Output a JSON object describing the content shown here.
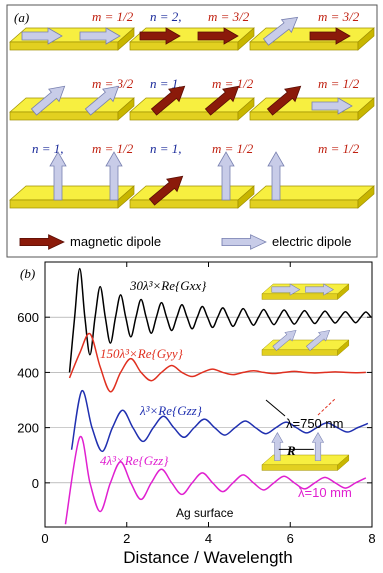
{
  "panel_a": {
    "label": "(a)",
    "rows": [
      [
        {
          "m": "m = 1/2"
        },
        {
          "n": "n = 2,",
          "m": "m = 3/2"
        },
        {
          "m": "m = 3/2"
        }
      ],
      [
        {
          "m": "m = 3/2"
        },
        {
          "n": "n = 1,",
          "m": "m = 1/2"
        },
        {
          "m": "m = 1/2"
        }
      ],
      [
        {
          "n": "n = 1,",
          "m": "m = 1/2"
        },
        {
          "n": "n = 1,",
          "m": "m = 1/2"
        },
        {
          "m": "m = 1/2"
        }
      ]
    ],
    "legend": [
      "magnetic dipole",
      "electric dipole"
    ]
  },
  "chart_data": {
    "type": "line",
    "label": "(b)",
    "x_label": "Distance / Wavelength",
    "xlim": [
      0,
      8
    ],
    "xticks": [
      0,
      2,
      4,
      6,
      8
    ],
    "ylim": [
      -160,
      800
    ],
    "yticks": [
      0,
      200,
      400,
      600
    ],
    "grid": true,
    "series": [
      {
        "name": "30λ³×Re{Gxx}",
        "color": "#000000",
        "x": [
          0.6,
          0.725,
          0.85,
          0.975,
          1.1,
          1.225,
          1.35,
          1.475,
          1.6,
          1.725,
          1.85,
          1.975,
          2.1,
          2.225,
          2.35,
          2.475,
          2.6,
          2.725,
          2.85,
          2.975,
          3.1,
          3.225,
          3.35,
          3.475,
          3.6,
          3.725,
          3.85,
          3.975,
          4.1,
          4.225,
          4.35,
          4.475,
          4.6,
          4.725,
          4.85,
          4.975,
          5.1,
          5.225,
          5.35,
          5.475,
          5.6,
          5.725,
          5.85,
          5.975,
          6.1,
          6.225,
          6.35,
          6.475,
          6.6,
          6.725,
          6.85,
          6.975,
          7.1,
          7.225,
          7.35,
          7.475,
          7.6,
          7.725,
          7.85,
          7.975
        ],
        "values": [
          400,
          600,
          776,
          600,
          464,
          600,
          711,
          600,
          506,
          600,
          681,
          600,
          529,
          600,
          664,
          600,
          542,
          600,
          653,
          600,
          552,
          600,
          645,
          600,
          558,
          600,
          639,
          600,
          563,
          600,
          634,
          600,
          567,
          600,
          631,
          600,
          571,
          600,
          628,
          600,
          573,
          600,
          626,
          600,
          575,
          600,
          624,
          600,
          577,
          600,
          622,
          600,
          579,
          600,
          620,
          600,
          580,
          600,
          619,
          600
        ]
      },
      {
        "name": "150λ³×Re{Gyy}",
        "color": "#e03020",
        "x": [
          0.6,
          0.85,
          1.1,
          1.35,
          1.6,
          1.85,
          2.1,
          2.35,
          2.6,
          2.85,
          3.1,
          3.35,
          3.6,
          3.85,
          4.1,
          4.35,
          4.6,
          4.85,
          5.1,
          5.35,
          5.6,
          5.85,
          6.1,
          6.35,
          6.6,
          6.85,
          7.1,
          7.35,
          7.6,
          7.85
        ],
        "values": [
          380,
          470,
          540,
          420,
          330,
          400,
          450,
          400,
          370,
          400,
          425,
          400,
          385,
          400,
          412,
          400,
          392,
          400,
          406,
          400,
          396,
          400,
          404,
          400,
          398,
          400,
          402,
          400,
          399,
          400
        ]
      },
      {
        "name": "λ³×Re{Gzz}",
        "color": "#2030b0",
        "x": [
          0.65,
          0.9,
          1.15,
          1.4,
          1.65,
          1.9,
          2.15,
          2.4,
          2.65,
          2.9,
          3.15,
          3.4,
          3.65,
          3.9,
          4.15,
          4.4,
          4.65,
          4.9,
          5.15,
          5.4,
          5.65,
          5.9,
          6.15,
          6.4,
          6.65,
          6.9,
          7.15,
          7.4,
          7.65,
          7.9
        ],
        "values": [
          120,
          333,
          200,
          114,
          200,
          263,
          200,
          150,
          200,
          241,
          200,
          165,
          200,
          231,
          200,
          173,
          200,
          224,
          200,
          178,
          200,
          220,
          200,
          181,
          200,
          217,
          200,
          184,
          200,
          215
        ]
      },
      {
        "name": "4λ³×Re{Gzz}",
        "color": "#e020d0",
        "x": [
          0.5,
          0.85,
          1.1,
          1.35,
          1.6,
          1.85,
          2.1,
          2.35,
          2.6,
          2.85,
          3.1,
          3.35,
          3.6,
          3.85,
          4.1,
          4.35,
          4.6,
          4.85,
          5.1,
          5.35,
          5.6,
          5.85,
          6.1,
          6.35,
          6.6,
          6.85,
          7.1,
          7.35,
          7.6,
          7.85
        ],
        "values": [
          -150,
          165,
          0,
          -104,
          0,
          76,
          0,
          -60,
          0,
          49,
          0,
          -42,
          0,
          36,
          0,
          -32,
          0,
          29,
          0,
          -26,
          0,
          24,
          0,
          -22,
          0,
          20,
          0,
          -19,
          0,
          18
        ]
      }
    ],
    "annotations": [
      "λ=750 nm",
      "λ=10 mm",
      "Ag surface",
      "R"
    ]
  }
}
